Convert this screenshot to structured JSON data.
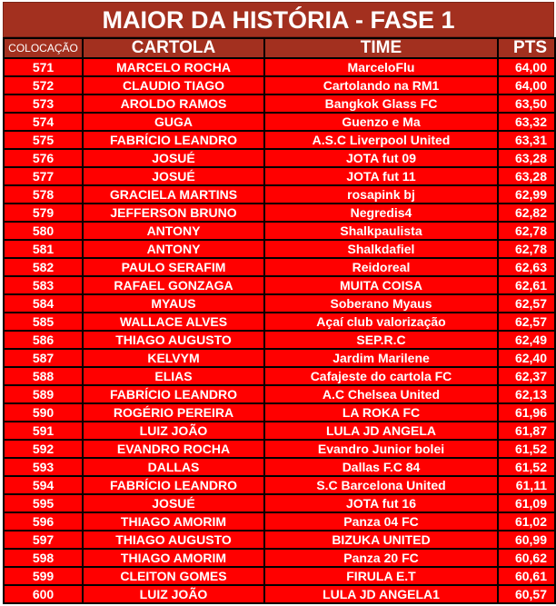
{
  "title": "MAIOR DA HISTÓRIA - FASE 1",
  "colors": {
    "header_bg": "#a3301f",
    "row_bg": "#ff0000",
    "text": "#ffffff",
    "border": "#000000"
  },
  "columns": [
    "COLOCAÇÃO",
    "CARTOLA",
    "TIME",
    "PTS"
  ],
  "rows": [
    [
      "571",
      "MARCELO ROCHA",
      "MarceloFlu",
      "64,00"
    ],
    [
      "572",
      "CLAUDIO TIAGO",
      "Cartolando na RM1",
      "64,00"
    ],
    [
      "573",
      "AROLDO RAMOS",
      "Bangkok Glass FC",
      "63,50"
    ],
    [
      "574",
      "GUGA",
      "Guenzo e Ma",
      "63,32"
    ],
    [
      "575",
      "FABRÍCIO LEANDRO",
      "A.S.C Liverpool United",
      "63,31"
    ],
    [
      "576",
      "JOSUÉ",
      "JOTA fut 09",
      "63,28"
    ],
    [
      "577",
      "JOSUÉ",
      "JOTA fut 11",
      "63,28"
    ],
    [
      "578",
      "GRACIELA MARTINS",
      "rosapink bj",
      "62,99"
    ],
    [
      "579",
      "JEFFERSON BRUNO",
      "Negredis4",
      "62,82"
    ],
    [
      "580",
      "ANTONY",
      "Shalkpaulista",
      "62,78"
    ],
    [
      "581",
      "ANTONY",
      "Shalkdafiel",
      "62,78"
    ],
    [
      "582",
      "PAULO SERAFIM",
      "Reidoreal",
      "62,63"
    ],
    [
      "583",
      "RAFAEL GONZAGA",
      "MUITA COISA",
      "62,61"
    ],
    [
      "584",
      "MYAUS",
      "Soberano Myaus",
      "62,57"
    ],
    [
      "585",
      "WALLACE ALVES",
      "Açaí club valorização",
      "62,57"
    ],
    [
      "586",
      "THIAGO AUGUSTO",
      "SEP.R.C",
      "62,49"
    ],
    [
      "587",
      "KELVYM",
      "Jardim Marilene",
      "62,40"
    ],
    [
      "588",
      "ELIAS",
      "Cafajeste do cartola FC",
      "62,37"
    ],
    [
      "589",
      "FABRÍCIO LEANDRO",
      "A.C Chelsea United",
      "62,13"
    ],
    [
      "590",
      "ROGÉRIO PEREIRA",
      "LA ROKA FC",
      "61,96"
    ],
    [
      "591",
      "LUIZ JOÃO",
      "LULA JD ANGELA",
      "61,87"
    ],
    [
      "592",
      "EVANDRO ROCHA",
      "Evandro Junior bolei",
      "61,52"
    ],
    [
      "593",
      "DALLAS",
      "Dallas F.C 84",
      "61,52"
    ],
    [
      "594",
      "FABRÍCIO LEANDRO",
      "S.C Barcelona United",
      "61,11"
    ],
    [
      "595",
      "JOSUÉ",
      "JOTA fut 16",
      "61,09"
    ],
    [
      "596",
      "THIAGO AMORIM",
      "Panza 04 FC",
      "61,02"
    ],
    [
      "597",
      "THIAGO AUGUSTO",
      "BIZUKA UNITED",
      "60,99"
    ],
    [
      "598",
      "THIAGO AMORIM",
      "Panza 20 FC",
      "60,62"
    ],
    [
      "599",
      "CLEITON GOMES",
      "FIRULA E.T",
      "60,61"
    ],
    [
      "600",
      "LUIZ JOÃO",
      "LULA JD ANGELA1",
      "60,57"
    ]
  ]
}
